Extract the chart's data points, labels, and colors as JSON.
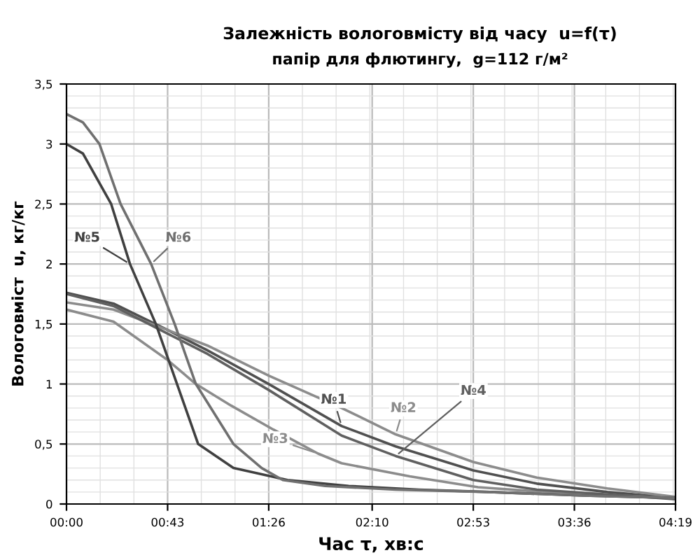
{
  "chart_data": {
    "type": "line",
    "title": "Залежність вологовмісту від часу  u=f(τ)",
    "subtitle": "папір для флютингу,  g=112 г/м²",
    "xlabel": "Час τ, хв:с",
    "ylabel": "Вологовміст  u, кг/кг",
    "xlim": [
      0,
      259
    ],
    "xticks": [
      {
        "value": 0,
        "label": "00:00"
      },
      {
        "value": 43,
        "label": "00:43"
      },
      {
        "value": 86,
        "label": "01:26"
      },
      {
        "value": 130,
        "label": "02:10"
      },
      {
        "value": 173,
        "label": "02:53"
      },
      {
        "value": 216,
        "label": "03:36"
      },
      {
        "value": 259,
        "label": "04:19"
      }
    ],
    "ylim": [
      0,
      3.5
    ],
    "yticks": [
      0,
      {
        "value": 0.5,
        "label": "0,5"
      },
      1,
      {
        "value": 1.5,
        "label": "1,5"
      },
      2,
      {
        "value": 2.5,
        "label": "2,5"
      },
      3,
      {
        "value": 3.5,
        "label": "3,5"
      }
    ],
    "grid": true,
    "legend": false,
    "marker": "none",
    "line_style": "solid",
    "series": [
      {
        "name": "№1",
        "color": "#505050",
        "x": [
          0,
          20,
          43,
          60,
          86,
          117,
          140,
          173,
          200,
          230,
          259
        ],
        "values": [
          1.76,
          1.67,
          1.45,
          1.28,
          1.0,
          0.65,
          0.48,
          0.28,
          0.17,
          0.1,
          0.05
        ]
      },
      {
        "name": "№2",
        "color": "#8c8c8c",
        "x": [
          0,
          20,
          43,
          60,
          86,
          117,
          140,
          173,
          200,
          230,
          259
        ],
        "values": [
          1.68,
          1.62,
          1.45,
          1.32,
          1.07,
          0.8,
          0.58,
          0.35,
          0.22,
          0.13,
          0.06
        ]
      },
      {
        "name": "№3",
        "color": "#8c8c8c",
        "x": [
          0,
          20,
          43,
          55,
          70,
          88,
          107,
          117,
          146,
          175,
          210,
          259
        ],
        "values": [
          1.62,
          1.52,
          1.2,
          1.0,
          0.82,
          0.62,
          0.42,
          0.34,
          0.23,
          0.14,
          0.09,
          0.05
        ]
      },
      {
        "name": "№4",
        "color": "#606060",
        "x": [
          0,
          20,
          43,
          60,
          86,
          117,
          140,
          173,
          200,
          230,
          259
        ],
        "values": [
          1.75,
          1.65,
          1.42,
          1.25,
          0.95,
          0.57,
          0.4,
          0.2,
          0.12,
          0.08,
          0.04
        ]
      },
      {
        "name": "№5",
        "color": "#404040",
        "x": [
          0,
          7,
          19,
          27,
          38,
          47,
          56,
          71,
          94,
          120,
          150,
          180,
          220,
          259
        ],
        "values": [
          3.0,
          2.92,
          2.5,
          2.0,
          1.5,
          1.0,
          0.5,
          0.3,
          0.2,
          0.15,
          0.12,
          0.1,
          0.07,
          0.05
        ]
      },
      {
        "name": "№6",
        "color": "#707070",
        "x": [
          0,
          7,
          14,
          23,
          36,
          46,
          55,
          71,
          83,
          92,
          110,
          140,
          180,
          220,
          259
        ],
        "values": [
          3.25,
          3.18,
          3.0,
          2.5,
          2.0,
          1.5,
          1.0,
          0.5,
          0.3,
          0.2,
          0.15,
          0.12,
          0.1,
          0.07,
          0.05
        ]
      }
    ]
  }
}
